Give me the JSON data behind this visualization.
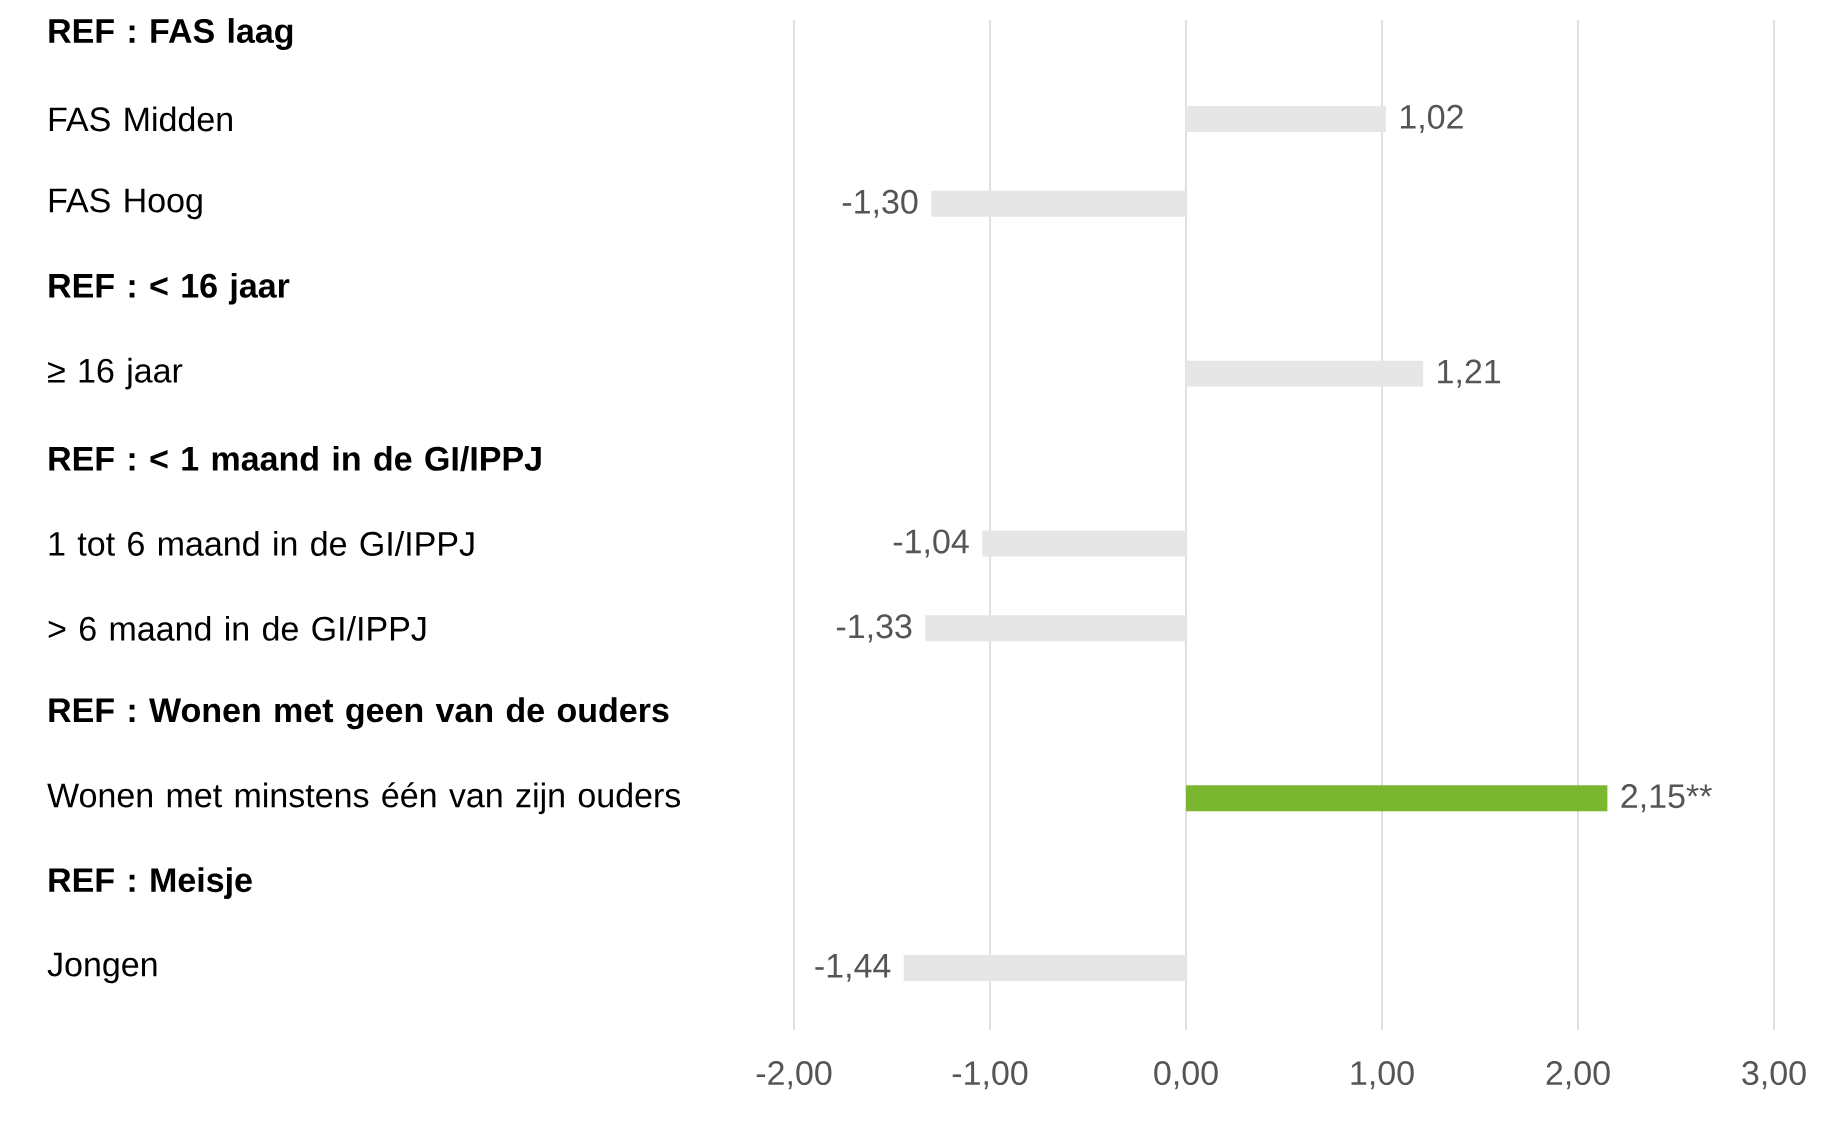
{
  "chart_data": {
    "type": "bar",
    "orientation": "horizontal",
    "categories": [
      "REF : FAS laag",
      "FAS Midden",
      "FAS Hoog",
      "REF :  < 16 jaar",
      "≥ 16 jaar",
      "REF : < 1 maand in de GI/IPPJ",
      "1 tot 6 maand in de GI/IPPJ",
      "> 6 maand in de GI/IPPJ",
      "REF : Wonen met geen van de ouders",
      "Wonen met minstens één van zijn ouders",
      "REF : Meisje",
      "Jongen"
    ],
    "values": [
      null,
      1.02,
      -1.3,
      null,
      1.21,
      null,
      -1.04,
      -1.33,
      null,
      2.15,
      null,
      -1.44
    ],
    "colors": [
      "#e6e6e6",
      "#e6e6e6",
      "#e6e6e6",
      "#e6e6e6",
      "#e6e6e6",
      "#e6e6e6",
      "#e6e6e6",
      "#e6e6e6",
      "#e6e6e6",
      "#7ab72f",
      "#e6e6e6",
      "#e6e6e6"
    ],
    "value_labels": [
      null,
      "1,02",
      "-1,30",
      null,
      "1,21",
      null,
      "-1,04",
      "-1,33",
      null,
      "2,15**",
      null,
      "-1,44"
    ],
    "xlim": [
      -2,
      3
    ],
    "xticks": [
      {
        "value": -2,
        "label": "-2,00"
      },
      {
        "value": -1,
        "label": "-1,00"
      },
      {
        "value": 0,
        "label": "0,00"
      },
      {
        "value": 1,
        "label": "1,00"
      },
      {
        "value": 2,
        "label": "2,00"
      },
      {
        "value": 3,
        "label": "3,00"
      }
    ],
    "grid": "x"
  }
}
